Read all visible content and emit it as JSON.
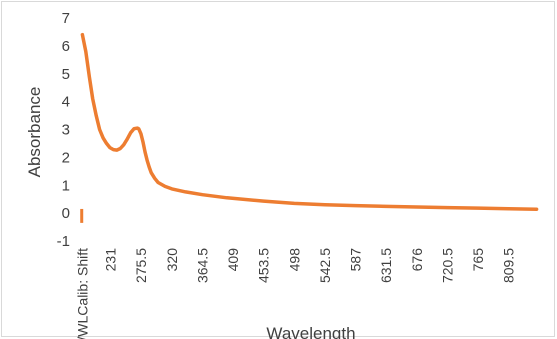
{
  "chart_data": {
    "type": "line",
    "title": "",
    "xlabel": "Wavelength",
    "ylabel": "Absorbance",
    "ylim": [
      -1,
      7
    ],
    "yticks": [
      "-1",
      "0",
      "1",
      "2",
      "3",
      "4",
      "5",
      "6",
      "7"
    ],
    "xtick_labels": [
      "?/WLCalib: Shift",
      "231",
      "275.5",
      "320",
      "364.5",
      "409",
      "453.5",
      "498",
      "542.5",
      "587",
      "631.5",
      "676",
      "720.5",
      "765",
      "809.5"
    ],
    "xlim": [
      186.5,
      855
    ],
    "grid": false,
    "legend": "none",
    "line_color": "#ED7D31",
    "series": [
      {
        "x": [
          190,
          195,
          200,
          205,
          210,
          215,
          220,
          225,
          230,
          235,
          240,
          245,
          250,
          255,
          260,
          265,
          270,
          272,
          275,
          278,
          281,
          284,
          287,
          290,
          295,
          300,
          310,
          320,
          340,
          364.5,
          400,
          453.5,
          498,
          542.5,
          587,
          631.5,
          676,
          720.5,
          765,
          809.5,
          850
        ],
        "values": [
          6.4,
          5.8,
          4.9,
          4.1,
          3.5,
          3.0,
          2.7,
          2.5,
          2.35,
          2.28,
          2.26,
          2.32,
          2.45,
          2.65,
          2.88,
          3.03,
          3.05,
          3.02,
          2.85,
          2.55,
          2.2,
          1.9,
          1.65,
          1.45,
          1.25,
          1.1,
          0.96,
          0.87,
          0.76,
          0.66,
          0.55,
          0.43,
          0.35,
          0.3,
          0.27,
          0.24,
          0.22,
          0.2,
          0.18,
          0.16,
          0.14
        ]
      }
    ],
    "artifact_marker": {
      "x": 189,
      "values": [
        -0.35,
        0.15
      ]
    }
  }
}
